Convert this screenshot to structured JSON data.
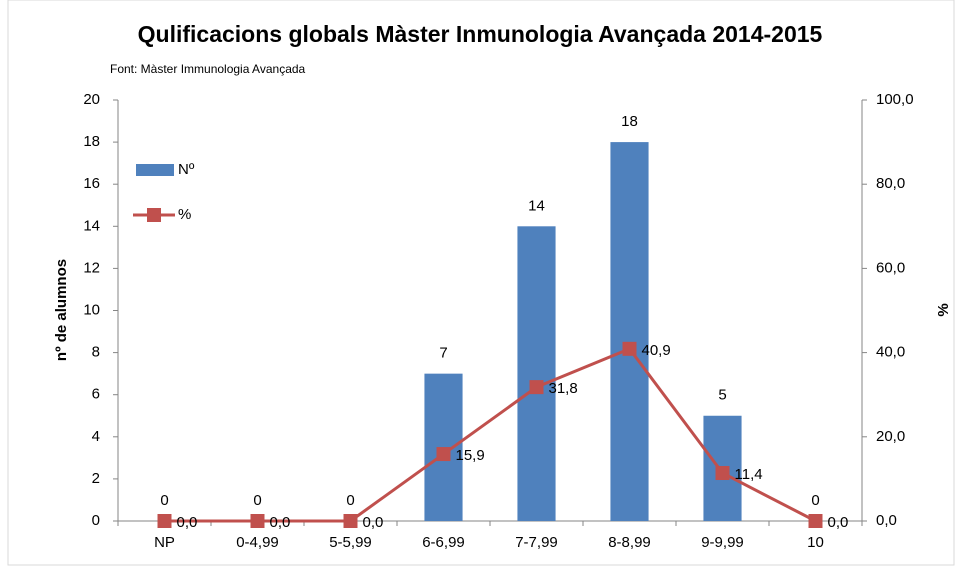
{
  "chart_data": {
    "type": "bar",
    "title": "Qulificacions globals Màster Inmunologia Avançada 2014-2015",
    "subtitle": "Font: Màster Immunologia Avançada",
    "y_label": "nº de alumnos",
    "y2_label": "%",
    "categories": [
      "NP",
      "0-4,99",
      "5-5,99",
      "6-6,99",
      "7-7,99",
      "8-8,99",
      "9-9,99",
      "10"
    ],
    "series": [
      {
        "name": "Nº",
        "type": "bar",
        "color": "#4f81bd",
        "values": [
          0,
          0,
          0,
          7,
          14,
          18,
          5,
          0
        ]
      },
      {
        "name": "%",
        "type": "line",
        "axis": "y2",
        "color": "#c0504d",
        "values": [
          0,
          0,
          0,
          15.9,
          31.8,
          40.9,
          11.4,
          0
        ],
        "value_labels": [
          "0,0",
          "0,0",
          "0,0",
          "15,9",
          "31,8",
          "40,9",
          "11,4",
          "0,0"
        ]
      }
    ],
    "ylim": [
      0,
      20
    ],
    "yticks": [
      0,
      2,
      4,
      6,
      8,
      10,
      12,
      14,
      16,
      18,
      20
    ],
    "y2lim": [
      0,
      100
    ],
    "y2ticks": [
      {
        "value": 0,
        "label": "0,0"
      },
      {
        "value": 20,
        "label": "20,0"
      },
      {
        "value": 40,
        "label": "40,0"
      },
      {
        "value": 60,
        "label": "60,0"
      },
      {
        "value": 80,
        "label": "80,0"
      },
      {
        "value": 100,
        "label": "100,0"
      }
    ],
    "legend": "top-left",
    "grid": false
  }
}
